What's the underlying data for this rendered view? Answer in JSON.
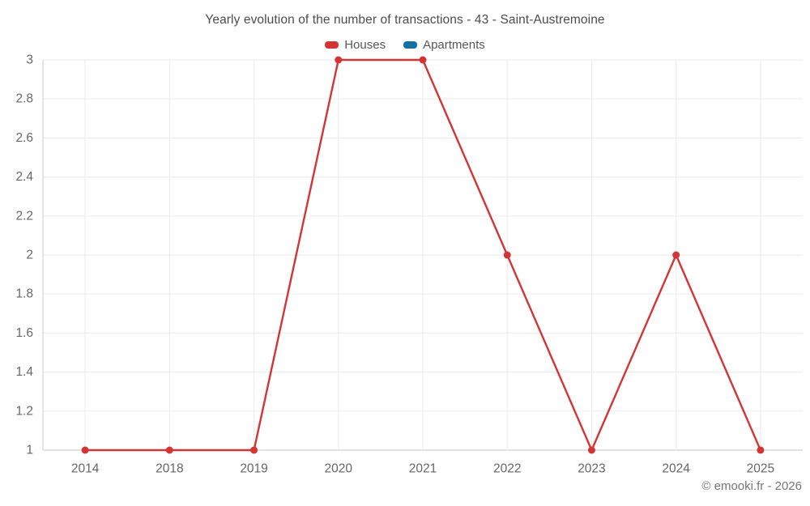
{
  "title": "Yearly evolution of the number of transactions - 43 - Saint-Austremoine",
  "attribution": "© emooki.fr - 2026",
  "legend": [
    {
      "label": "Houses",
      "color": "#d33434"
    },
    {
      "label": "Apartments",
      "color": "#1273a2"
    }
  ],
  "colors": {
    "houses": "#d33434",
    "apartments": "#1273a2",
    "grid": "#ededed",
    "axis": "#d9d9d9",
    "tick_text": "#666666",
    "title_text": "#4c4c4c",
    "attribution_text": "#757575"
  },
  "chart_data": {
    "type": "line",
    "title": "Yearly evolution of the number of transactions - 43 - Saint-Austremoine",
    "categories": [
      "2014",
      "2018",
      "2019",
      "2020",
      "2021",
      "2022",
      "2023",
      "2024",
      "2025"
    ],
    "series": [
      {
        "name": "Houses",
        "color": "#d33434",
        "values": [
          1,
          1,
          1,
          3,
          3,
          2,
          1,
          2,
          1
        ]
      },
      {
        "name": "Apartments",
        "color": "#1273a2",
        "values": []
      }
    ],
    "xlabel": "",
    "ylabel": "",
    "ylim": [
      1,
      3
    ],
    "yticks": [
      1,
      1.2,
      1.4,
      1.6,
      1.8,
      2,
      2.2,
      2.4,
      2.6,
      2.8,
      3
    ],
    "grid": true,
    "legend_position": "top",
    "marker": "circle"
  }
}
